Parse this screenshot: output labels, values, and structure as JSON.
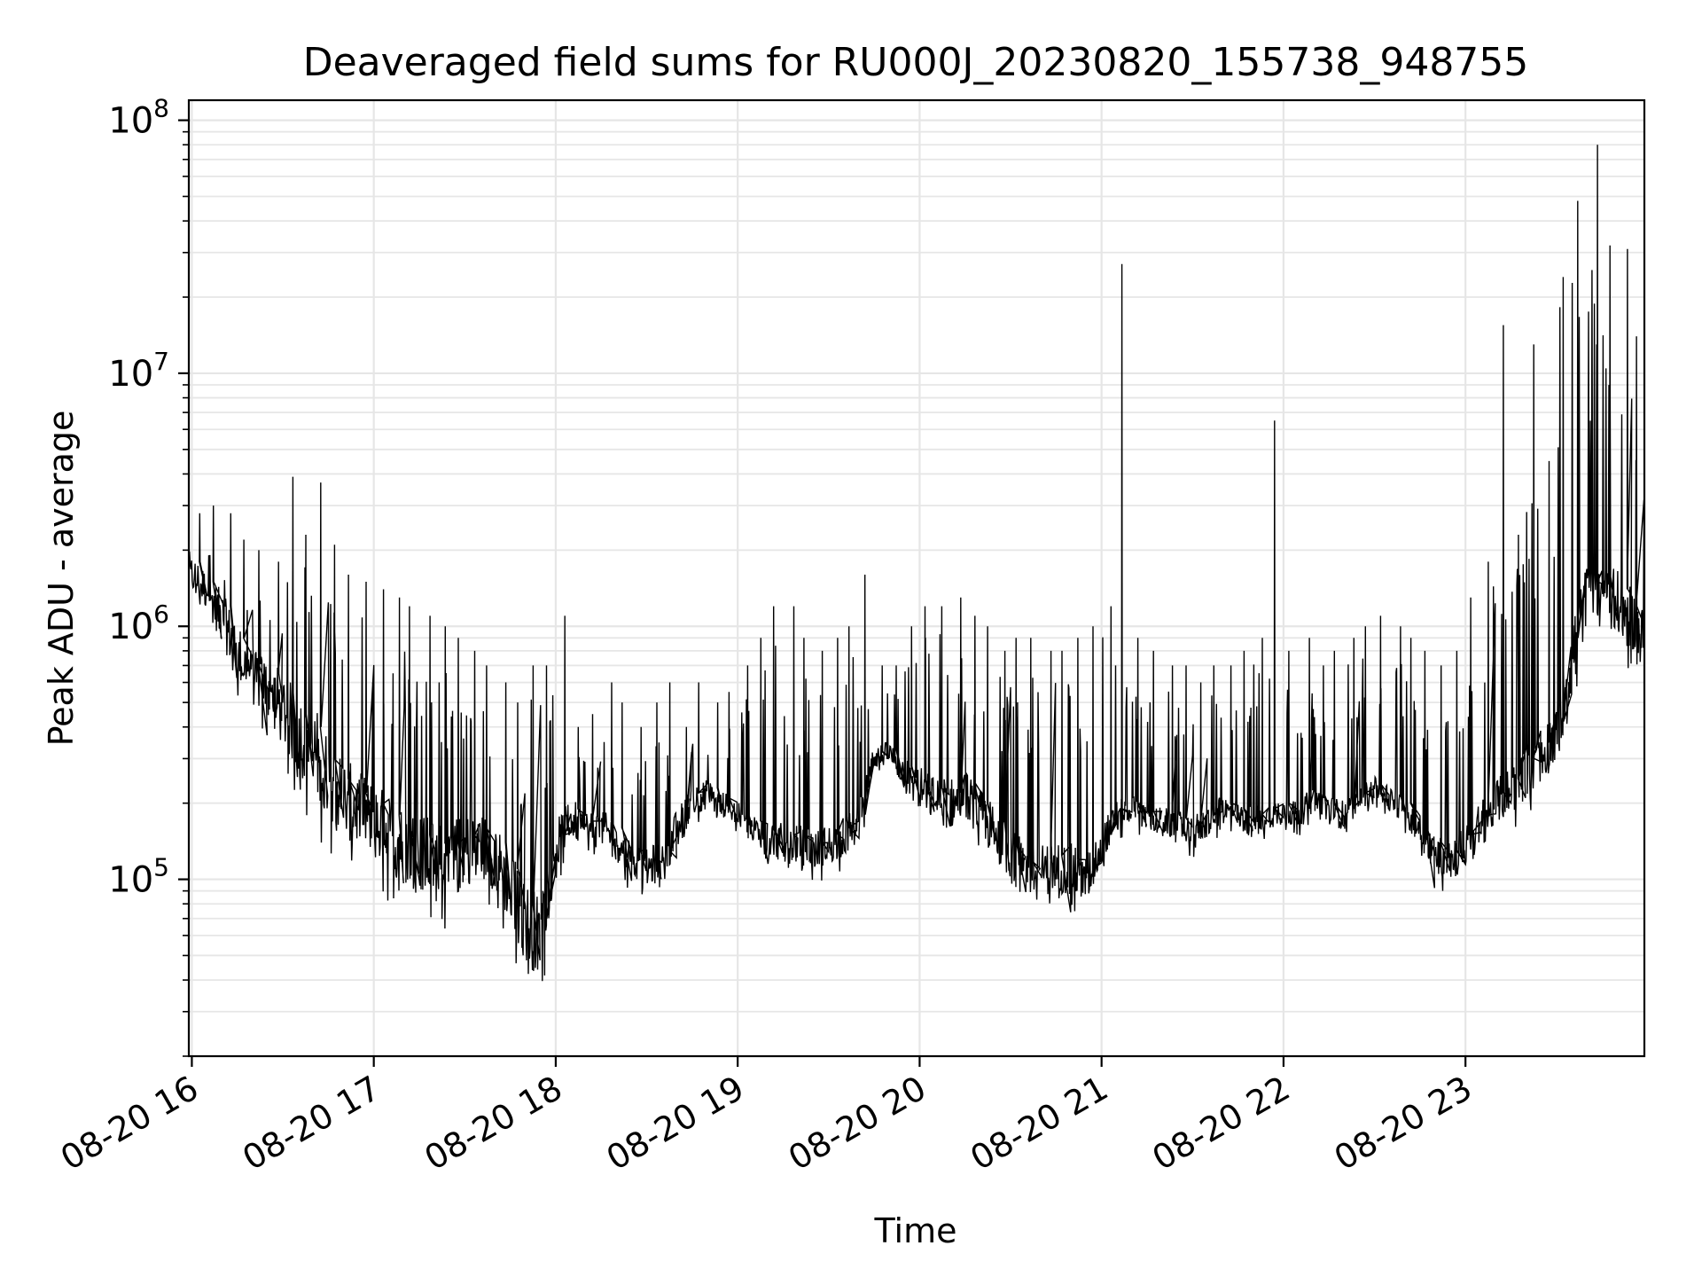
{
  "chart_data": {
    "type": "line",
    "title": "Deaveraged field sums for RU000J_20230820_155738_948755",
    "xlabel": "Time",
    "ylabel": "Peak ADU - average",
    "yscale": "log",
    "grid": true,
    "legend": "none",
    "line_color": "#000000",
    "grid_color": "#e6e6e6",
    "x_range": [
      "2023-08-20 15:59",
      "2023-08-20 23:59"
    ],
    "y_range": [
      20000,
      120000000
    ],
    "x_ticks": [
      {
        "value": "2023-08-20 16:00",
        "label": "08-20 16"
      },
      {
        "value": "2023-08-20 17:00",
        "label": "08-20 17"
      },
      {
        "value": "2023-08-20 18:00",
        "label": "08-20 18"
      },
      {
        "value": "2023-08-20 19:00",
        "label": "08-20 19"
      },
      {
        "value": "2023-08-20 20:00",
        "label": "08-20 20"
      },
      {
        "value": "2023-08-20 21:00",
        "label": "08-20 21"
      },
      {
        "value": "2023-08-20 22:00",
        "label": "08-20 22"
      },
      {
        "value": "2023-08-20 23:00",
        "label": "08-20 23"
      }
    ],
    "y_ticks": [
      {
        "value": 100000,
        "base": "10",
        "exp": "5"
      },
      {
        "value": 1000000,
        "base": "10",
        "exp": "6"
      },
      {
        "value": 10000000,
        "base": "10",
        "exp": "7"
      },
      {
        "value": 100000000,
        "base": "10",
        "exp": "8"
      }
    ],
    "series": [
      {
        "x": [
          "2023-08-20 15:59",
          "2023-08-20 16:05",
          "2023-08-20 16:10",
          "2023-08-20 16:15",
          "2023-08-20 16:20",
          "2023-08-20 16:25",
          "2023-08-20 16:30",
          "2023-08-20 16:35",
          "2023-08-20 16:40",
          "2023-08-20 16:45",
          "2023-08-20 16:50",
          "2023-08-20 16:55",
          "2023-08-20 17:00",
          "2023-08-20 17:05",
          "2023-08-20 17:10",
          "2023-08-20 17:15",
          "2023-08-20 17:20",
          "2023-08-20 17:25",
          "2023-08-20 17:30",
          "2023-08-20 17:35",
          "2023-08-20 17:40",
          "2023-08-20 17:45",
          "2023-08-20 17:50",
          "2023-08-20 17:55",
          "2023-08-20 18:00",
          "2023-08-20 18:05",
          "2023-08-20 18:10",
          "2023-08-20 18:15",
          "2023-08-20 18:20",
          "2023-08-20 18:25",
          "2023-08-20 18:30",
          "2023-08-20 18:35",
          "2023-08-20 18:40",
          "2023-08-20 18:45",
          "2023-08-20 18:50",
          "2023-08-20 18:55",
          "2023-08-20 19:00",
          "2023-08-20 19:05",
          "2023-08-20 19:10",
          "2023-08-20 19:15",
          "2023-08-20 19:20",
          "2023-08-20 19:25",
          "2023-08-20 19:30",
          "2023-08-20 19:35",
          "2023-08-20 19:40",
          "2023-08-20 19:45",
          "2023-08-20 19:50",
          "2023-08-20 19:55",
          "2023-08-20 20:00",
          "2023-08-20 20:05",
          "2023-08-20 20:10",
          "2023-08-20 20:15",
          "2023-08-20 20:20",
          "2023-08-20 20:25",
          "2023-08-20 20:30",
          "2023-08-20 20:35",
          "2023-08-20 20:40",
          "2023-08-20 20:45",
          "2023-08-20 20:50",
          "2023-08-20 20:55",
          "2023-08-20 21:00",
          "2023-08-20 21:05",
          "2023-08-20 21:10",
          "2023-08-20 21:15",
          "2023-08-20 21:20",
          "2023-08-20 21:25",
          "2023-08-20 21:30",
          "2023-08-20 21:35",
          "2023-08-20 21:40",
          "2023-08-20 21:45",
          "2023-08-20 21:50",
          "2023-08-20 21:55",
          "2023-08-20 22:00",
          "2023-08-20 22:05",
          "2023-08-20 22:10",
          "2023-08-20 22:15",
          "2023-08-20 22:20",
          "2023-08-20 22:25",
          "2023-08-20 22:30",
          "2023-08-20 22:35",
          "2023-08-20 22:40",
          "2023-08-20 22:45",
          "2023-08-20 22:50",
          "2023-08-20 22:55",
          "2023-08-20 23:00",
          "2023-08-20 23:05",
          "2023-08-20 23:10",
          "2023-08-20 23:15",
          "2023-08-20 23:20",
          "2023-08-20 23:25",
          "2023-08-20 23:30",
          "2023-08-20 23:35",
          "2023-08-20 23:40",
          "2023-08-20 23:45",
          "2023-08-20 23:50",
          "2023-08-20 23:55",
          "2023-08-20 23:59"
        ],
        "min": [
          1200000,
          1000000,
          700000,
          500000,
          400000,
          350000,
          250000,
          200000,
          150000,
          130000,
          110000,
          100000,
          90000,
          80000,
          70000,
          65000,
          60000,
          60000,
          70000,
          80000,
          70000,
          50000,
          35000,
          30000,
          90000,
          130000,
          110000,
          120000,
          100000,
          90000,
          80000,
          85000,
          110000,
          160000,
          170000,
          160000,
          150000,
          130000,
          110000,
          100000,
          100000,
          95000,
          100000,
          105000,
          120000,
          250000,
          260000,
          200000,
          160000,
          140000,
          130000,
          150000,
          120000,
          100000,
          80000,
          65000,
          70000,
          75000,
          70000,
          65000,
          100000,
          140000,
          150000,
          140000,
          135000,
          130000,
          120000,
          130000,
          150000,
          140000,
          130000,
          140000,
          150000,
          140000,
          170000,
          150000,
          140000,
          170000,
          190000,
          170000,
          150000,
          120000,
          90000,
          85000,
          90000,
          110000,
          140000,
          150000,
          170000,
          200000,
          230000,
          400000,
          800000,
          900000,
          700000,
          650000,
          550000
        ],
        "typ": [
          1800000,
          1500000,
          1200000,
          900000,
          700000,
          650000,
          550000,
          450000,
          400000,
          300000,
          250000,
          220000,
          200000,
          180000,
          160000,
          150000,
          140000,
          140000,
          150000,
          160000,
          140000,
          110000,
          80000,
          70000,
          150000,
          190000,
          170000,
          170000,
          160000,
          130000,
          120000,
          130000,
          170000,
          220000,
          230000,
          210000,
          190000,
          170000,
          160000,
          150000,
          150000,
          140000,
          150000,
          160000,
          180000,
          320000,
          330000,
          280000,
          250000,
          230000,
          220000,
          240000,
          200000,
          170000,
          140000,
          120000,
          120000,
          125000,
          120000,
          110000,
          150000,
          190000,
          200000,
          185000,
          180000,
          175000,
          165000,
          180000,
          200000,
          190000,
          180000,
          190000,
          200000,
          190000,
          220000,
          200000,
          190000,
          220000,
          240000,
          220000,
          200000,
          170000,
          140000,
          130000,
          150000,
          180000,
          220000,
          250000,
          300000,
          350000,
          420000,
          900000,
          1500000,
          1600000,
          1400000,
          1200000,
          1000000
        ],
        "max": [
          2800000,
          3000000,
          2800000,
          2200000,
          2000000,
          1800000,
          3900000,
          2300000,
          3700000,
          2100000,
          1600000,
          1500000,
          1400000,
          1300000,
          1200000,
          1100000,
          1000000,
          900000,
          800000,
          700000,
          600000,
          500000,
          700000,
          700000,
          1100000,
          400000,
          450000,
          600000,
          500000,
          400000,
          500000,
          600000,
          400000,
          600000,
          500000,
          550000,
          700000,
          900000,
          1200000,
          1200000,
          900000,
          800000,
          900000,
          1000000,
          1600000,
          700000,
          700000,
          1000000,
          1200000,
          1200000,
          1300000,
          1100000,
          1000000,
          800000,
          900000,
          900000,
          800000,
          800000,
          900000,
          1000000,
          1200000,
          27000000,
          900000,
          800000,
          700000,
          700000,
          600000,
          700000,
          700000,
          800000,
          900000,
          6500000,
          800000,
          900000,
          700000,
          800000,
          900000,
          1000000,
          1100000,
          1000000,
          900000,
          800000,
          700000,
          800000,
          1300000,
          1800000,
          15500000,
          2300000,
          13000000,
          4500000,
          24000000,
          48000000,
          80000000,
          32000000,
          31000000,
          14000000,
          6300000
        ]
      }
    ]
  }
}
